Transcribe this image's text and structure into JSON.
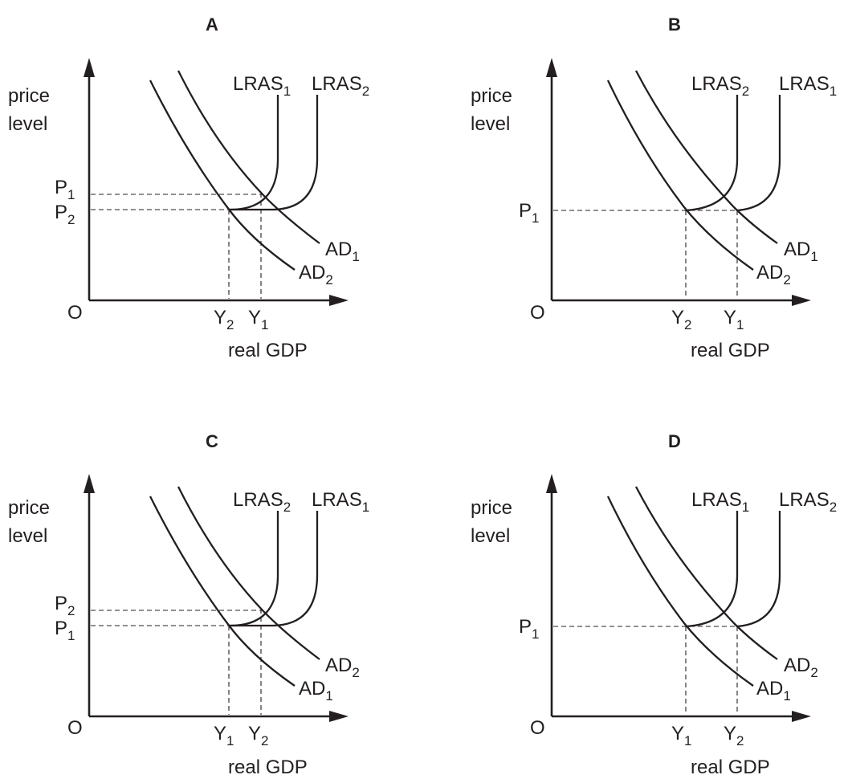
{
  "panels": [
    {
      "letter": "A",
      "y_axis_label": [
        "price",
        "level"
      ],
      "x_axis_label": "real GDP",
      "origin": "O",
      "p_labels": {
        "upper": [
          "P",
          "1"
        ],
        "lower": [
          "P",
          "2"
        ]
      },
      "y_labels": {
        "left": [
          "Y",
          "2"
        ],
        "right": [
          "Y",
          "1"
        ]
      },
      "lras_labels": {
        "left": [
          "LRAS",
          "1"
        ],
        "right": [
          "LRAS",
          "2"
        ]
      },
      "ad_labels": {
        "upper": [
          "AD",
          "1"
        ],
        "lower": [
          "AD",
          "2"
        ]
      }
    },
    {
      "letter": "B",
      "y_axis_label": [
        "price",
        "level"
      ],
      "x_axis_label": "real GDP",
      "origin": "O",
      "p_labels": {
        "single": [
          "P",
          "1"
        ]
      },
      "y_labels": {
        "left": [
          "Y",
          "2"
        ],
        "right": [
          "Y",
          "1"
        ]
      },
      "lras_labels": {
        "left": [
          "LRAS",
          "2"
        ],
        "right": [
          "LRAS",
          "1"
        ]
      },
      "ad_labels": {
        "upper": [
          "AD",
          "1"
        ],
        "lower": [
          "AD",
          "2"
        ]
      }
    },
    {
      "letter": "C",
      "y_axis_label": [
        "price",
        "level"
      ],
      "x_axis_label": "real GDP",
      "origin": "O",
      "p_labels": {
        "upper": [
          "P",
          "2"
        ],
        "lower": [
          "P",
          "1"
        ]
      },
      "y_labels": {
        "left": [
          "Y",
          "1"
        ],
        "right": [
          "Y",
          "2"
        ]
      },
      "lras_labels": {
        "left": [
          "LRAS",
          "2"
        ],
        "right": [
          "LRAS",
          "1"
        ]
      },
      "ad_labels": {
        "upper": [
          "AD",
          "2"
        ],
        "lower": [
          "AD",
          "1"
        ]
      }
    },
    {
      "letter": "D",
      "y_axis_label": [
        "price",
        "level"
      ],
      "x_axis_label": "real GDP",
      "origin": "O",
      "p_labels": {
        "single": [
          "P",
          "1"
        ]
      },
      "y_labels": {
        "left": [
          "Y",
          "1"
        ],
        "right": [
          "Y",
          "2"
        ]
      },
      "lras_labels": {
        "left": [
          "LRAS",
          "1"
        ],
        "right": [
          "LRAS",
          "2"
        ]
      },
      "ad_labels": {
        "upper": [
          "AD",
          "2"
        ],
        "lower": [
          "AD",
          "1"
        ]
      }
    }
  ]
}
